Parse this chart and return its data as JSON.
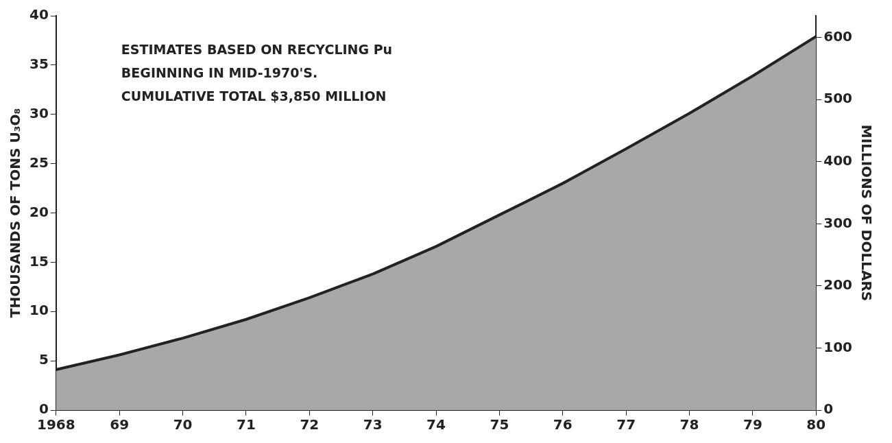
{
  "chart_data": {
    "type": "area",
    "ylabel": "THOUSANDS OF TONS U₃O₈",
    "y2label": "MILLIONS OF DOLLARS",
    "annotations": [
      "ESTIMATES BASED ON RECYCLING Pu\nBEGINNING IN MID-1970'S.\nCUMULATIVE TOTAL $3,850 MILLION"
    ],
    "x": [
      1968,
      1969,
      1970,
      1971,
      1972,
      1973,
      1974,
      1975,
      1976,
      1977,
      1978,
      1979,
      1980
    ],
    "series": [
      {
        "color": "#a8a8a8",
        "values": [
          4.1,
          5.6,
          7.3,
          9.2,
          11.4,
          13.8,
          16.6,
          19.8,
          23.0,
          26.5,
          30.1,
          33.9,
          37.9
        ]
      }
    ],
    "xlim": [
      1968,
      1980
    ],
    "xticks": [
      1968,
      {
        "value": 1969,
        "label": "69"
      },
      {
        "value": 1970,
        "label": "70"
      },
      {
        "value": 1971,
        "label": "71"
      },
      {
        "value": 1972,
        "label": "72"
      },
      {
        "value": 1973,
        "label": "73"
      },
      {
        "value": 1974,
        "label": "74"
      },
      {
        "value": 1975,
        "label": "75"
      },
      {
        "value": 1976,
        "label": "76"
      },
      {
        "value": 1977,
        "label": "77"
      },
      {
        "value": 1978,
        "label": "78"
      },
      {
        "value": 1979,
        "label": "79"
      },
      {
        "value": 1980,
        "label": "80"
      }
    ],
    "ylim": [
      0,
      40
    ],
    "yticks": [
      0,
      5,
      10,
      15,
      20,
      25,
      30,
      35,
      40
    ],
    "y2lim": [
      0,
      635
    ],
    "y2ticks": [
      0,
      100,
      200,
      300,
      400,
      500,
      600
    ],
    "grid": false,
    "legend": false
  }
}
